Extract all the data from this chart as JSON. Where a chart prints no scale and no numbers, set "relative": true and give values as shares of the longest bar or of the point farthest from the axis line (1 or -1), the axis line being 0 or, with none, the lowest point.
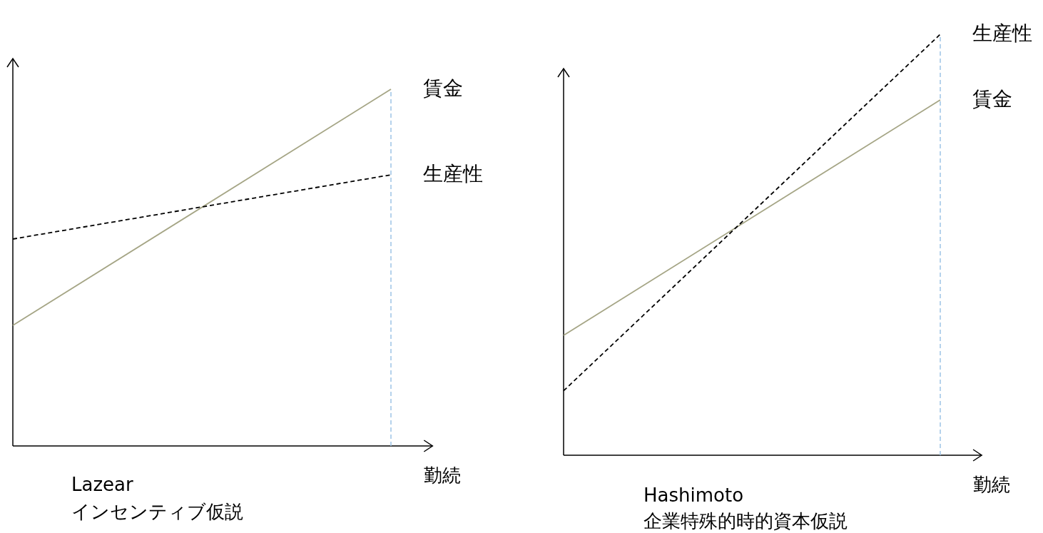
{
  "chart_data": [
    {
      "type": "line",
      "relative": true,
      "categories": [
        null,
        null
      ],
      "xlabel": "勤続",
      "series": [
        {
          "name": "賃金",
          "color": "#a5a585",
          "line_style": "solid",
          "values": [
            0.338,
            1
          ]
        },
        {
          "name": "生産性",
          "color": "#000000",
          "line_style": "dashed",
          "values": [
            0.58,
            0.76
          ]
        }
      ],
      "ref_lines": [
        {
          "axis": "x",
          "color": "#9dc3e6",
          "line_style": "dashed"
        }
      ],
      "annotations": [
        "Lazear",
        "インセンティブ仮説"
      ]
    },
    {
      "type": "line",
      "relative": true,
      "categories": [
        null,
        null
      ],
      "xlabel": "勤続",
      "series": [
        {
          "name": "賃金",
          "color": "#a5a585",
          "line_style": "solid",
          "values": [
            0.285,
            0.844
          ]
        },
        {
          "name": "生産性",
          "color": "#000000",
          "line_style": "dashed",
          "values": [
            0.153,
            1
          ]
        }
      ],
      "ref_lines": [
        {
          "axis": "x",
          "color": "#9dc3e6",
          "line_style": "dashed"
        }
      ],
      "annotations": [
        "Hashimoto",
        "企業特殊的時的資本仮説"
      ]
    }
  ]
}
